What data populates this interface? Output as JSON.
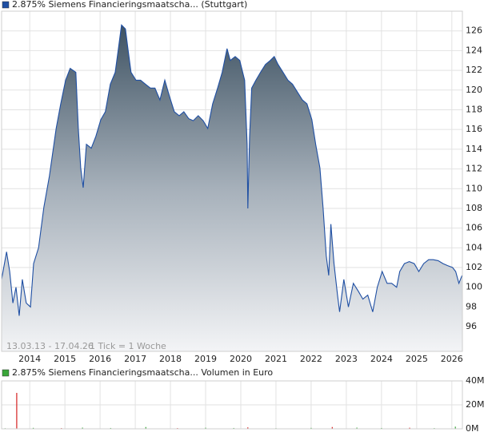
{
  "chart_data": [
    {
      "type": "area",
      "date_range": "13.03.13 - 17.04.26",
      "tick_info": "1 Tick = 1 Woche",
      "x": [
        2013.2,
        2013.34,
        2013.43,
        2013.52,
        2013.61,
        2013.7,
        2013.79,
        2013.9,
        2014.02,
        2014.11,
        2014.25,
        2014.4,
        2014.56,
        2014.75,
        2014.88,
        2015.02,
        2015.15,
        2015.31,
        2015.38,
        2015.45,
        2015.52,
        2015.61,
        2015.75,
        2015.88,
        2016.02,
        2016.15,
        2016.29,
        2016.43,
        2016.52,
        2016.61,
        2016.72,
        2016.79,
        2016.88,
        2017.02,
        2017.15,
        2017.29,
        2017.43,
        2017.56,
        2017.7,
        2017.84,
        2017.97,
        2018.11,
        2018.25,
        2018.38,
        2018.52,
        2018.65,
        2018.79,
        2018.93,
        2019.06,
        2019.2,
        2019.34,
        2019.47,
        2019.61,
        2019.7,
        2019.84,
        2019.97,
        2020.11,
        2020.18,
        2020.2,
        2020.25,
        2020.31,
        2020.43,
        2020.56,
        2020.7,
        2020.84,
        2020.95,
        2021.06,
        2021.2,
        2021.34,
        2021.47,
        2021.61,
        2021.75,
        2021.88,
        2022.02,
        2022.13,
        2022.25,
        2022.34,
        2022.43,
        2022.5,
        2022.56,
        2022.65,
        2022.75,
        2022.81,
        2022.93,
        2023.06,
        2023.2,
        2023.34,
        2023.47,
        2023.61,
        2023.75,
        2023.88,
        2024.02,
        2024.16,
        2024.29,
        2024.43,
        2024.52,
        2024.65,
        2024.79,
        2024.93,
        2025.06,
        2025.2,
        2025.34,
        2025.47,
        2025.61,
        2025.75,
        2025.88,
        2026.02,
        2026.11,
        2026.2,
        2026.29
      ],
      "series": [
        {
          "name": "2.875% Siemens Financieringsmaatscha... (Stuttgart)",
          "color": "#1f4fa3",
          "values": [
            100.8,
            103.6,
            101.6,
            98.4,
            100.0,
            97.1,
            100.8,
            98.4,
            98.0,
            102.4,
            104.0,
            108.1,
            111.3,
            116.1,
            118.6,
            121.0,
            122.2,
            121.8,
            116.1,
            112.1,
            110.1,
            114.5,
            114.1,
            115.3,
            117.0,
            117.8,
            120.6,
            121.8,
            124.2,
            126.6,
            126.2,
            124.2,
            121.8,
            121.0,
            121.0,
            120.6,
            120.2,
            120.2,
            119.0,
            121.0,
            119.4,
            117.8,
            117.4,
            117.8,
            117.1,
            116.9,
            117.4,
            116.9,
            116.1,
            118.6,
            120.2,
            121.8,
            124.2,
            123.0,
            123.4,
            123.0,
            121.0,
            114.5,
            108.0,
            115.3,
            120.2,
            121.0,
            121.8,
            122.6,
            123.0,
            123.4,
            122.6,
            121.8,
            121.0,
            120.6,
            119.8,
            119.0,
            118.6,
            117.0,
            114.5,
            112.1,
            108.0,
            103.2,
            101.2,
            106.4,
            102.4,
            99.2,
            97.5,
            100.8,
            98.0,
            100.4,
            99.6,
            98.8,
            99.2,
            97.5,
            100.0,
            101.6,
            100.4,
            100.4,
            100.0,
            101.6,
            102.4,
            102.6,
            102.4,
            101.6,
            102.4,
            102.8,
            102.8,
            102.7,
            102.4,
            102.2,
            102.0,
            101.6,
            100.4,
            101.2
          ]
        }
      ],
      "xlim": [
        2013.2,
        2026.3
      ],
      "xticks": [
        2014,
        2015,
        2016,
        2017,
        2018,
        2019,
        2020,
        2021,
        2022,
        2023,
        2024,
        2025,
        2026
      ],
      "ylim": [
        93.5,
        128
      ],
      "yticks": [
        96,
        98,
        100,
        102,
        104,
        106,
        108,
        110,
        112,
        114,
        116,
        118,
        120,
        122,
        124,
        126
      ],
      "grid": true
    },
    {
      "type": "bar",
      "x": [
        2013.3,
        2013.63,
        2014.1,
        2014.9,
        2015.5,
        2016.3,
        2017.3,
        2018.2,
        2019.0,
        2019.8,
        2020.2,
        2021.0,
        2022.0,
        2022.6,
        2023.3,
        2024.0,
        2024.8,
        2025.5,
        2026.1
      ],
      "series": [
        {
          "name": "2.875% Siemens Financieringsmaatscha... Volumen in Euro",
          "color": "#3aa63a",
          "values": [
            500000,
            30000000,
            800000,
            600000,
            1000000,
            700000,
            1500000,
            600000,
            900000,
            700000,
            1200000,
            500000,
            800000,
            1500000,
            1000000,
            700000,
            900000,
            600000,
            1800000
          ],
          "colors": [
            "#3aa63a",
            "#d62020",
            "#3aa63a",
            "#d62020",
            "#3aa63a",
            "#3aa63a",
            "#3aa63a",
            "#d62020",
            "#3aa63a",
            "#3aa63a",
            "#d62020",
            "#3aa63a",
            "#3aa63a",
            "#d62020",
            "#3aa63a",
            "#3aa63a",
            "#d62020",
            "#3aa63a",
            "#3aa63a"
          ]
        }
      ],
      "xlim": [
        2013.2,
        2026.3
      ],
      "ylim": [
        0,
        40000000
      ],
      "yticks": [
        {
          "value": 0,
          "label": "0M"
        },
        {
          "value": 20000000,
          "label": "20M"
        },
        {
          "value": 40000000,
          "label": "40M"
        }
      ],
      "grid": true
    }
  ]
}
